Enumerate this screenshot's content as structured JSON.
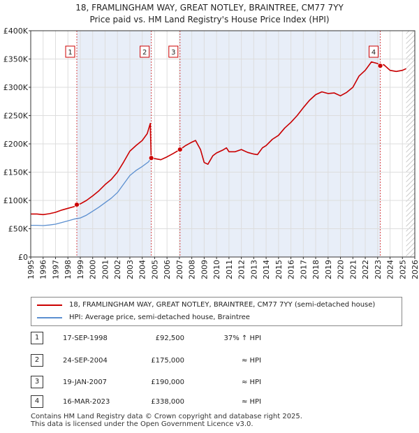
{
  "header": {
    "title_line1": "18, FRAMLINGHAM WAY, GREAT NOTLEY, BRAINTREE, CM77 7YY",
    "title_line2": "Price paid vs. HM Land Registry's House Price Index (HPI)"
  },
  "colors": {
    "red": "#cc0000",
    "blue": "#5b8fd0",
    "shade": "#e8eef8",
    "marker_red": "#cc0000"
  },
  "chart_data": {
    "type": "line",
    "title": "Price paid vs. HM Land Registry's House Price Index (HPI)",
    "xlabel": "",
    "ylabel": "",
    "xlim": [
      1995,
      2026
    ],
    "ylim": [
      0,
      400000
    ],
    "x_ticks": [
      1995,
      1996,
      1997,
      1998,
      1999,
      2000,
      2001,
      2002,
      2003,
      2004,
      2005,
      2006,
      2007,
      2008,
      2009,
      2010,
      2011,
      2012,
      2013,
      2014,
      2015,
      2016,
      2017,
      2018,
      2019,
      2020,
      2021,
      2022,
      2023,
      2024,
      2025,
      2026
    ],
    "y_ticks": [
      {
        "value": 0,
        "label": "£0"
      },
      {
        "value": 50000,
        "label": "£50K"
      },
      {
        "value": 100000,
        "label": "£100K"
      },
      {
        "value": 150000,
        "label": "£150K"
      },
      {
        "value": 200000,
        "label": "£200K"
      },
      {
        "value": 250000,
        "label": "£250K"
      },
      {
        "value": 300000,
        "label": "£300K"
      },
      {
        "value": 350000,
        "label": "£350K"
      },
      {
        "value": 400000,
        "label": "£400K"
      }
    ],
    "grid": true,
    "series": [
      {
        "name": "18, FRAMLINGHAM WAY, GREAT NOTLEY, BRAINTREE, CM77 7YY (semi-detached house)",
        "color": "#cc0000",
        "points": [
          [
            1995.0,
            76000
          ],
          [
            1995.5,
            76000
          ],
          [
            1996.0,
            75000
          ],
          [
            1996.5,
            76500
          ],
          [
            1997.0,
            79000
          ],
          [
            1997.5,
            83000
          ],
          [
            1998.0,
            86000
          ],
          [
            1998.5,
            89000
          ],
          [
            1998.72,
            92500
          ],
          [
            1999.0,
            94000
          ],
          [
            1999.5,
            100000
          ],
          [
            2000.0,
            108000
          ],
          [
            2000.5,
            117000
          ],
          [
            2001.0,
            128000
          ],
          [
            2001.5,
            137000
          ],
          [
            2002.0,
            150000
          ],
          [
            2002.5,
            168000
          ],
          [
            2003.0,
            187000
          ],
          [
            2003.5,
            197000
          ],
          [
            2004.0,
            206000
          ],
          [
            2004.4,
            218000
          ],
          [
            2004.65,
            236000
          ],
          [
            2004.72,
            175000
          ],
          [
            2005.0,
            174000
          ],
          [
            2005.5,
            172000
          ],
          [
            2006.0,
            177000
          ],
          [
            2006.5,
            183000
          ],
          [
            2007.05,
            190000
          ],
          [
            2007.5,
            197000
          ],
          [
            2008.0,
            203000
          ],
          [
            2008.3,
            206000
          ],
          [
            2008.7,
            190000
          ],
          [
            2009.0,
            167000
          ],
          [
            2009.3,
            164000
          ],
          [
            2009.7,
            179000
          ],
          [
            2010.0,
            184000
          ],
          [
            2010.5,
            189000
          ],
          [
            2010.8,
            193000
          ],
          [
            2011.0,
            186000
          ],
          [
            2011.5,
            186000
          ],
          [
            2012.0,
            190000
          ],
          [
            2012.5,
            185000
          ],
          [
            2013.0,
            182000
          ],
          [
            2013.3,
            181000
          ],
          [
            2013.7,
            193000
          ],
          [
            2014.0,
            197000
          ],
          [
            2014.5,
            208000
          ],
          [
            2015.0,
            215000
          ],
          [
            2015.5,
            228000
          ],
          [
            2016.0,
            238000
          ],
          [
            2016.5,
            250000
          ],
          [
            2017.0,
            264000
          ],
          [
            2017.5,
            277000
          ],
          [
            2018.0,
            287000
          ],
          [
            2018.5,
            292000
          ],
          [
            2019.0,
            289000
          ],
          [
            2019.5,
            290000
          ],
          [
            2020.0,
            285000
          ],
          [
            2020.5,
            291000
          ],
          [
            2021.0,
            300000
          ],
          [
            2021.5,
            320000
          ],
          [
            2022.0,
            330000
          ],
          [
            2022.5,
            345000
          ],
          [
            2023.0,
            342000
          ],
          [
            2023.21,
            338000
          ],
          [
            2023.5,
            340000
          ],
          [
            2024.0,
            330000
          ],
          [
            2024.5,
            328000
          ],
          [
            2025.0,
            330000
          ],
          [
            2025.3,
            333000
          ]
        ]
      },
      {
        "name": "HPI: Average price, semi-detached house, Braintree",
        "color": "#5b8fd0",
        "points": [
          [
            1995.0,
            56000
          ],
          [
            1995.5,
            56000
          ],
          [
            1996.0,
            55500
          ],
          [
            1996.5,
            56500
          ],
          [
            1997.0,
            58000
          ],
          [
            1997.5,
            61000
          ],
          [
            1998.0,
            64000
          ],
          [
            1998.5,
            67000
          ],
          [
            1999.0,
            69000
          ],
          [
            1999.5,
            74000
          ],
          [
            2000.0,
            81000
          ],
          [
            2000.5,
            88000
          ],
          [
            2001.0,
            96000
          ],
          [
            2001.5,
            104000
          ],
          [
            2002.0,
            114000
          ],
          [
            2002.5,
            129000
          ],
          [
            2003.0,
            144000
          ],
          [
            2003.5,
            153000
          ],
          [
            2004.0,
            160000
          ],
          [
            2004.5,
            168000
          ],
          [
            2004.72,
            175000
          ],
          [
            2005.0,
            174000
          ],
          [
            2005.5,
            172000
          ],
          [
            2006.0,
            177000
          ],
          [
            2006.5,
            183000
          ],
          [
            2007.05,
            190000
          ],
          [
            2007.5,
            197000
          ],
          [
            2008.0,
            203000
          ],
          [
            2008.3,
            206000
          ],
          [
            2008.7,
            190000
          ],
          [
            2009.0,
            167000
          ],
          [
            2009.3,
            164000
          ],
          [
            2009.7,
            179000
          ],
          [
            2010.0,
            184000
          ],
          [
            2010.5,
            189000
          ],
          [
            2010.8,
            193000
          ],
          [
            2011.0,
            186000
          ],
          [
            2011.5,
            186000
          ],
          [
            2012.0,
            190000
          ],
          [
            2012.5,
            185000
          ],
          [
            2013.0,
            182000
          ],
          [
            2013.3,
            181000
          ],
          [
            2013.7,
            193000
          ],
          [
            2014.0,
            197000
          ],
          [
            2014.5,
            208000
          ],
          [
            2015.0,
            215000
          ],
          [
            2015.5,
            228000
          ],
          [
            2016.0,
            238000
          ],
          [
            2016.5,
            250000
          ],
          [
            2017.0,
            264000
          ],
          [
            2017.5,
            277000
          ],
          [
            2018.0,
            287000
          ],
          [
            2018.5,
            292000
          ],
          [
            2019.0,
            289000
          ],
          [
            2019.5,
            290000
          ],
          [
            2020.0,
            285000
          ],
          [
            2020.5,
            291000
          ],
          [
            2021.0,
            300000
          ],
          [
            2021.5,
            320000
          ],
          [
            2022.0,
            330000
          ],
          [
            2022.5,
            345000
          ],
          [
            2023.0,
            342000
          ],
          [
            2023.21,
            338000
          ],
          [
            2023.5,
            340000
          ],
          [
            2024.0,
            330000
          ],
          [
            2024.5,
            328000
          ],
          [
            2025.0,
            330000
          ],
          [
            2025.3,
            333000
          ]
        ]
      }
    ],
    "shaded_ranges": [
      [
        1998.72,
        2004.73
      ],
      [
        2007.05,
        2023.21
      ]
    ],
    "hatched_range": [
      2025.3,
      2026
    ],
    "sales": [
      {
        "label": "1",
        "x": 1998.72,
        "y": 92500
      },
      {
        "label": "2",
        "x": 2004.73,
        "y": 175000
      },
      {
        "label": "3",
        "x": 2007.05,
        "y": 190000
      },
      {
        "label": "4",
        "x": 2023.21,
        "y": 338000
      }
    ]
  },
  "legend": {
    "property_label": "18, FRAMLINGHAM WAY, GREAT NOTLEY, BRAINTREE, CM77 7YY (semi-detached house)",
    "hpi_label": "HPI: Average price, semi-detached house, Braintree"
  },
  "transactions": [
    {
      "num": "1",
      "date": "17-SEP-1998",
      "price": "£92,500",
      "hpi": "37% ↑ HPI"
    },
    {
      "num": "2",
      "date": "24-SEP-2004",
      "price": "£175,000",
      "hpi": "≈ HPI"
    },
    {
      "num": "3",
      "date": "19-JAN-2007",
      "price": "£190,000",
      "hpi": "≈ HPI"
    },
    {
      "num": "4",
      "date": "16-MAR-2023",
      "price": "£338,000",
      "hpi": "≈ HPI"
    }
  ],
  "footer": {
    "line1": "Contains HM Land Registry data © Crown copyright and database right 2025.",
    "line2": "This data is licensed under the Open Government Licence v3.0."
  }
}
